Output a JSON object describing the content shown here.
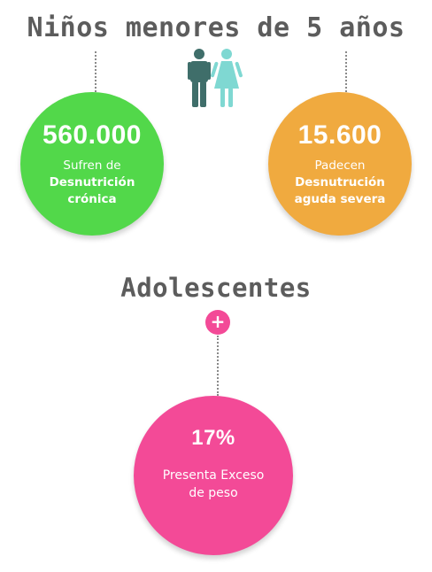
{
  "children": {
    "title": "Niños menores de 5 años",
    "stat_left": {
      "value": "560.000",
      "line1": "Sufren de",
      "line2": "Desnutrición",
      "line3": "crónica",
      "color": "#52d84a"
    },
    "stat_right": {
      "value": "15.600",
      "line1": "Padecen",
      "line2": "Desnutrución",
      "line3": "aguda severa",
      "color": "#f0aa3f"
    },
    "icon": "boy-girl-icon"
  },
  "teens": {
    "title": "Adolescentes",
    "badge_symbol": "+",
    "stat": {
      "value": "17%",
      "line1": "Presenta Exceso",
      "line2": "de peso",
      "color": "#f34a97"
    }
  },
  "colors": {
    "heading_text": "#5c5c5c",
    "boy": "#3f6e6a",
    "girl": "#7fd8d2"
  }
}
